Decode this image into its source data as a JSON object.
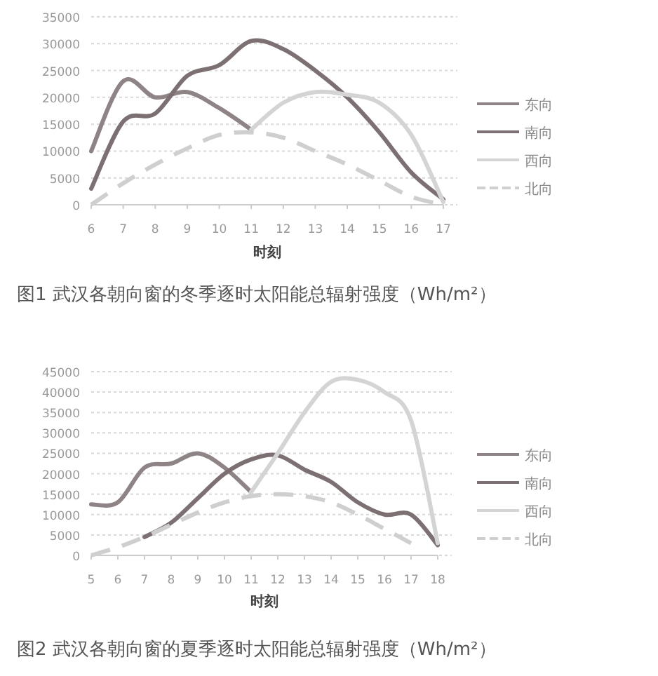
{
  "chart_data": [
    {
      "type": "line",
      "title": "图1  武汉各朝向窗的冬季逐时太阳能总辐射强度（Wh/m²）",
      "xlabel": "时刻",
      "x": [
        6,
        7,
        8,
        9,
        10,
        11,
        12,
        13,
        14,
        15,
        16,
        17
      ],
      "xlim": [
        6,
        17
      ],
      "xticks": [
        6,
        7,
        8,
        9,
        10,
        11,
        12,
        13,
        14,
        15,
        16,
        17
      ],
      "ylim": [
        0,
        35000
      ],
      "yticks": [
        0,
        5000,
        10000,
        15000,
        20000,
        25000,
        30000,
        35000
      ],
      "grid": "y",
      "legend": "right",
      "series": [
        {
          "name": "东向",
          "color": "#8e8385",
          "values": [
            10000,
            23000,
            20000,
            21000,
            18000,
            14000,
            null,
            null,
            null,
            null,
            null,
            null
          ]
        },
        {
          "name": "南向",
          "color": "#7c7072",
          "values": [
            3000,
            15500,
            17000,
            24000,
            26000,
            30500,
            29000,
            25000,
            20000,
            13500,
            6000,
            1000
          ]
        },
        {
          "name": "西向",
          "color": "#d4d4d4",
          "values": [
            null,
            null,
            null,
            null,
            null,
            14000,
            19000,
            21000,
            20500,
            19000,
            13000,
            500
          ]
        },
        {
          "name": "北向",
          "color": "#cfcfcf",
          "line_style": "dashed",
          "values": [
            0,
            4000,
            7500,
            10500,
            13000,
            13500,
            12500,
            10000,
            7500,
            4500,
            1500,
            0
          ]
        }
      ]
    },
    {
      "type": "line",
      "title": "图2  武汉各朝向窗的夏季逐时太阳能总辐射强度（Wh/m²）",
      "xlabel": "时刻",
      "x": [
        5,
        6,
        7,
        8,
        9,
        10,
        11,
        12,
        13,
        14,
        15,
        16,
        17,
        18
      ],
      "xlim": [
        5,
        18
      ],
      "xticks": [
        5,
        6,
        7,
        8,
        9,
        10,
        11,
        12,
        13,
        14,
        15,
        16,
        17,
        18
      ],
      "ylim": [
        0,
        45000
      ],
      "yticks": [
        0,
        5000,
        10000,
        15000,
        20000,
        25000,
        30000,
        35000,
        40000,
        45000
      ],
      "grid": "y",
      "legend": "right",
      "series": [
        {
          "name": "东向",
          "color": "#8e8385",
          "values": [
            12500,
            13000,
            21500,
            22500,
            25000,
            21500,
            15500,
            null,
            null,
            null,
            null,
            null,
            null,
            null
          ]
        },
        {
          "name": "南向",
          "color": "#7c7072",
          "values": [
            null,
            null,
            4500,
            8000,
            14000,
            20000,
            23500,
            24500,
            21000,
            18000,
            13000,
            10000,
            10000,
            2500
          ]
        },
        {
          "name": "西向",
          "color": "#d4d4d4",
          "values": [
            null,
            null,
            null,
            null,
            null,
            null,
            15500,
            25000,
            35000,
            42500,
            43000,
            40000,
            33000,
            3000
          ]
        },
        {
          "name": "北向",
          "color": "#cfcfcf",
          "line_style": "dashed",
          "values": [
            0,
            2000,
            4500,
            7500,
            10500,
            13000,
            14500,
            15000,
            14500,
            13000,
            10000,
            6500,
            3000,
            null
          ]
        }
      ]
    }
  ]
}
